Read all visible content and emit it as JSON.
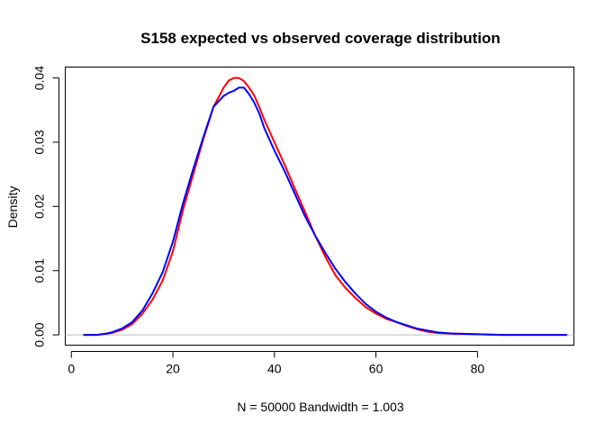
{
  "chart_data": {
    "type": "line",
    "title": "S158  expected vs observed coverage distribution",
    "xlabel": "N = 50000   Bandwidth = 1.003",
    "ylabel": "Density",
    "xlim": [
      -1.2,
      99.0
    ],
    "ylim": [
      -0.0016,
      0.0417
    ],
    "x_ticks": [
      0,
      20,
      40,
      60,
      80
    ],
    "x_tick_labels": [
      "0",
      "20",
      "40",
      "60",
      "80"
    ],
    "y_ticks": [
      0.0,
      0.01,
      0.02,
      0.03,
      0.04
    ],
    "y_tick_labels": [
      "0.00",
      "0.01",
      "0.02",
      "0.03",
      "0.04"
    ],
    "grid": false,
    "legend": "none",
    "zero_line": true,
    "series": [
      {
        "color": "#ff0000",
        "x": [
          2.5,
          5,
          7,
          8,
          10,
          12,
          14,
          16,
          18,
          20,
          22,
          24,
          26,
          28,
          30,
          31,
          32,
          33,
          34,
          35,
          36,
          37,
          38,
          40,
          42,
          44,
          46,
          48,
          50,
          52,
          54,
          56,
          58,
          60,
          62,
          64,
          66,
          68,
          70,
          72,
          75,
          80,
          85,
          90,
          97.5
        ],
        "y": [
          0.0,
          0.0,
          0.0002,
          0.0003,
          0.0008,
          0.0017,
          0.0033,
          0.0055,
          0.0085,
          0.013,
          0.0195,
          0.025,
          0.0305,
          0.0355,
          0.0385,
          0.0396,
          0.04,
          0.04,
          0.0395,
          0.0385,
          0.0373,
          0.0355,
          0.0335,
          0.03,
          0.0265,
          0.0228,
          0.0192,
          0.0155,
          0.0122,
          0.0093,
          0.0073,
          0.0057,
          0.0043,
          0.0033,
          0.0025,
          0.002,
          0.0014,
          0.0009,
          0.0005,
          0.0003,
          0.0002,
          0.0001,
          0.0,
          0.0,
          0.0
        ]
      },
      {
        "color": "#0000ff",
        "x": [
          2.5,
          5,
          7,
          8,
          10,
          12,
          14,
          16,
          18,
          20,
          22,
          24,
          26,
          28,
          30,
          31,
          32,
          33,
          34,
          35,
          36,
          37,
          38,
          40,
          42,
          44,
          46,
          48,
          50,
          52,
          54,
          56,
          58,
          60,
          62,
          64,
          66,
          68,
          70,
          72,
          75,
          80,
          85,
          90,
          97.5
        ],
        "y": [
          0.0,
          0.0,
          0.0002,
          0.0004,
          0.001,
          0.002,
          0.0038,
          0.0065,
          0.0098,
          0.0145,
          0.0205,
          0.0258,
          0.0308,
          0.0355,
          0.0372,
          0.0377,
          0.038,
          0.0385,
          0.0385,
          0.0375,
          0.0362,
          0.0345,
          0.0322,
          0.0287,
          0.0255,
          0.022,
          0.0185,
          0.0155,
          0.0128,
          0.0103,
          0.0082,
          0.0064,
          0.0048,
          0.0036,
          0.0027,
          0.002,
          0.0015,
          0.001,
          0.0007,
          0.0004,
          0.0002,
          0.0001,
          0.0,
          0.0,
          0.0
        ]
      }
    ]
  }
}
